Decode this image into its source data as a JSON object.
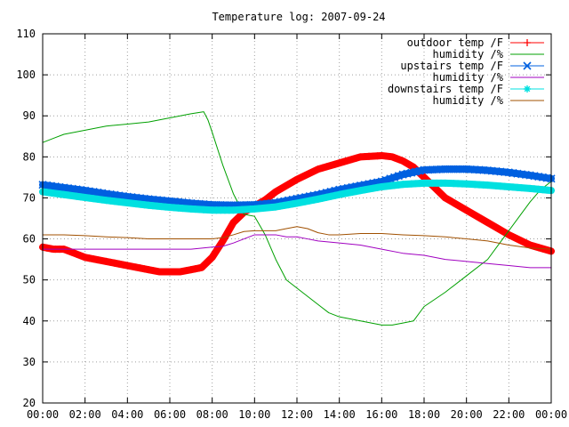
{
  "chart_data": {
    "type": "line",
    "title": "Temperature log: 2007-09-24",
    "xlabel": "",
    "ylabel": "",
    "ylim": [
      20,
      110
    ],
    "xlim": [
      0,
      24
    ],
    "yticks": [
      20,
      30,
      40,
      50,
      60,
      70,
      80,
      90,
      100,
      110
    ],
    "xticks": [
      0,
      2,
      4,
      6,
      8,
      10,
      12,
      14,
      16,
      18,
      20,
      22,
      24
    ],
    "xtick_labels": [
      "00:00",
      "02:00",
      "04:00",
      "06:00",
      "08:00",
      "10:00",
      "12:00",
      "14:00",
      "16:00",
      "18:00",
      "20:00",
      "22:00",
      "00:00"
    ],
    "grid": true,
    "legend": "top-right",
    "series": [
      {
        "name": "outdoor temp /F",
        "color": "#ff0000",
        "marker": "plus",
        "x": [
          0,
          0.5,
          1,
          1.5,
          2,
          3,
          4,
          5,
          5.5,
          6,
          6.5,
          7,
          7.5,
          8,
          8.5,
          9,
          9.5,
          10,
          10.5,
          11,
          12,
          13,
          14,
          15,
          16,
          16.5,
          17,
          17.5,
          18,
          18.5,
          19,
          20,
          21,
          22,
          23,
          24
        ],
        "y": [
          58,
          57.5,
          57.5,
          56.5,
          55.5,
          54.5,
          53.5,
          52.5,
          52,
          52,
          52,
          52.5,
          53,
          55.5,
          59.5,
          64,
          66.5,
          68,
          69.5,
          71.5,
          74.5,
          77,
          78.5,
          80,
          80.3,
          80,
          79,
          77.5,
          75,
          72.5,
          70,
          67,
          64,
          61,
          58.5,
          57
        ]
      },
      {
        "name": "humidity /%",
        "color": "#00a000",
        "marker": "none",
        "x": [
          0,
          0.5,
          1,
          2,
          3,
          4,
          5,
          6,
          7,
          7.6,
          7.8,
          8,
          8.5,
          9,
          9.5,
          10,
          10.5,
          11,
          11.5,
          12,
          12.5,
          13,
          13.5,
          14,
          15,
          16,
          16.5,
          17,
          17.5,
          18,
          19,
          20,
          21,
          21.5,
          22,
          22.5,
          23,
          23.5,
          24
        ],
        "y": [
          83.5,
          84.5,
          85.5,
          86.5,
          87.5,
          88,
          88.5,
          89.5,
          90.5,
          91,
          89,
          86,
          78,
          71,
          66,
          65.5,
          61,
          55,
          50,
          48,
          46,
          44,
          42,
          41,
          40,
          39,
          39,
          39.5,
          40,
          43.5,
          47,
          51,
          55,
          58.5,
          62,
          65.5,
          69,
          72,
          74
        ]
      },
      {
        "name": "upstairs temp /F",
        "color": "#0060e0",
        "marker": "cross",
        "x": [
          0,
          1,
          2,
          3,
          4,
          5,
          6,
          7,
          8,
          9,
          10,
          11,
          12,
          13,
          14,
          15,
          16,
          17,
          18,
          19,
          20,
          21,
          22,
          23,
          24
        ],
        "y": [
          73.2,
          72.5,
          71.8,
          71,
          70.3,
          69.7,
          69.2,
          68.7,
          68.3,
          68.2,
          68.3,
          68.8,
          69.8,
          70.8,
          72,
          73,
          74,
          75.7,
          76.8,
          77,
          77,
          76.7,
          76.2,
          75.5,
          74.7
        ]
      },
      {
        "name": "humidity /%",
        "color": "#a000c0",
        "marker": "none",
        "x": [
          0,
          1,
          2,
          4,
          6,
          7,
          8,
          8.5,
          9,
          9.5,
          10,
          11,
          11.5,
          12,
          12.5,
          13,
          14,
          15,
          16,
          17,
          18,
          19,
          20,
          21,
          22,
          23,
          24
        ],
        "y": [
          57.5,
          57.5,
          57.5,
          57.5,
          57.5,
          57.5,
          58,
          58.2,
          59,
          60,
          61,
          61,
          60.5,
          60.5,
          60,
          59.5,
          59,
          58.5,
          57.5,
          56.5,
          56,
          55,
          54.5,
          54,
          53.5,
          53,
          53
        ]
      },
      {
        "name": "downstairs temp /F",
        "color": "#00e0e0",
        "marker": "star",
        "x": [
          0,
          1,
          2,
          3,
          4,
          5,
          6,
          7,
          8,
          9,
          10,
          11,
          12,
          13,
          14,
          15,
          16,
          17,
          18,
          19,
          20,
          21,
          22,
          23,
          24
        ],
        "y": [
          71.5,
          70.8,
          70.1,
          69.4,
          68.8,
          68.2,
          67.7,
          67.3,
          67,
          67,
          67.3,
          67.8,
          68.7,
          69.7,
          70.8,
          71.8,
          72.7,
          73.3,
          73.6,
          73.6,
          73.4,
          73.1,
          72.7,
          72.3,
          71.8
        ]
      },
      {
        "name": "humidity /%",
        "color": "#a05000",
        "marker": "none",
        "x": [
          0,
          1,
          2,
          3,
          4,
          5,
          6,
          7,
          8,
          8.5,
          9,
          9.5,
          10,
          11,
          11.5,
          12,
          12.5,
          13,
          13.5,
          14,
          15,
          16,
          17,
          18,
          19,
          20,
          21,
          22,
          23,
          24
        ],
        "y": [
          61,
          61,
          60.8,
          60.5,
          60.3,
          60,
          60,
          60,
          60,
          60.3,
          61,
          61.8,
          62,
          62,
          62.5,
          63,
          62.5,
          61.5,
          61,
          61,
          61.3,
          61.3,
          61,
          60.8,
          60.5,
          60,
          59.5,
          58.5,
          57.8,
          57.5
        ]
      }
    ]
  }
}
